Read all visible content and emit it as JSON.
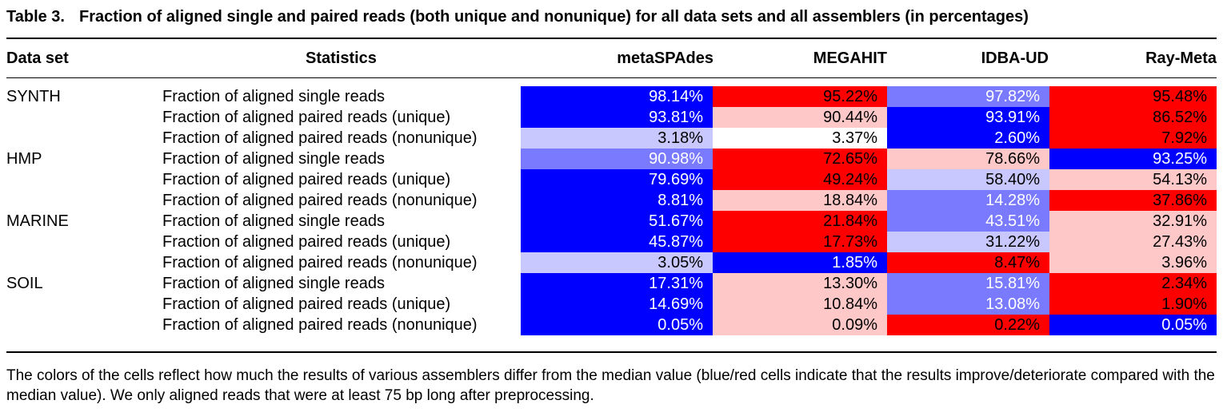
{
  "caption": {
    "label": "Table 3.",
    "title": "Fraction of aligned single and paired reads (both unique and nonunique) for all data sets and all assemblers (in percentages)"
  },
  "headers": {
    "dataset": "Data set",
    "statistics": "Statistics",
    "assemblers": [
      "metaSPAdes",
      "MEGAHIT",
      "IDBA-UD",
      "Ray-Meta"
    ]
  },
  "colors": {
    "blue": "#0000ff",
    "medium_blue": "#7a7aff",
    "light_blue": "#c8c8ff",
    "white": "#ffffff",
    "light_red": "#ffc8c8",
    "red": "#ff0000"
  },
  "rows": [
    {
      "dataset": "SYNTH",
      "stat": "Fraction of aligned single reads",
      "cells": [
        {
          "v": "98.14%",
          "c": "blue"
        },
        {
          "v": "95.22%",
          "c": "red"
        },
        {
          "v": "97.82%",
          "c": "medium_blue"
        },
        {
          "v": "95.48%",
          "c": "red"
        }
      ]
    },
    {
      "dataset": "",
      "stat": "Fraction of aligned paired reads (unique)",
      "cells": [
        {
          "v": "93.81%",
          "c": "blue"
        },
        {
          "v": "90.44%",
          "c": "light_red"
        },
        {
          "v": "93.91%",
          "c": "blue"
        },
        {
          "v": "86.52%",
          "c": "red"
        }
      ]
    },
    {
      "dataset": "",
      "stat": "Fraction of aligned paired reads (nonunique)",
      "cells": [
        {
          "v": "3.18%",
          "c": "light_blue"
        },
        {
          "v": "3.37%",
          "c": "white"
        },
        {
          "v": "2.60%",
          "c": "blue"
        },
        {
          "v": "7.92%",
          "c": "red"
        }
      ]
    },
    {
      "dataset": "HMP",
      "stat": "Fraction of aligned single reads",
      "cells": [
        {
          "v": "90.98%",
          "c": "medium_blue"
        },
        {
          "v": "72.65%",
          "c": "red"
        },
        {
          "v": "78.66%",
          "c": "light_red"
        },
        {
          "v": "93.25%",
          "c": "blue"
        }
      ]
    },
    {
      "dataset": "",
      "stat": "Fraction of aligned paired reads (unique)",
      "cells": [
        {
          "v": "79.69%",
          "c": "blue"
        },
        {
          "v": "49.24%",
          "c": "red"
        },
        {
          "v": "58.40%",
          "c": "light_blue"
        },
        {
          "v": "54.13%",
          "c": "light_red"
        }
      ]
    },
    {
      "dataset": "",
      "stat": "Fraction of aligned paired reads (nonunique)",
      "cells": [
        {
          "v": "8.81%",
          "c": "blue"
        },
        {
          "v": "18.84%",
          "c": "light_red"
        },
        {
          "v": "14.28%",
          "c": "medium_blue"
        },
        {
          "v": "37.86%",
          "c": "red"
        }
      ]
    },
    {
      "dataset": "MARINE",
      "stat": "Fraction of aligned single reads",
      "cells": [
        {
          "v": "51.67%",
          "c": "blue"
        },
        {
          "v": "21.84%",
          "c": "red"
        },
        {
          "v": "43.51%",
          "c": "medium_blue"
        },
        {
          "v": "32.91%",
          "c": "light_red"
        }
      ]
    },
    {
      "dataset": "",
      "stat": "Fraction of aligned paired reads (unique)",
      "cells": [
        {
          "v": "45.87%",
          "c": "blue"
        },
        {
          "v": "17.73%",
          "c": "red"
        },
        {
          "v": "31.22%",
          "c": "light_blue"
        },
        {
          "v": "27.43%",
          "c": "light_red"
        }
      ]
    },
    {
      "dataset": "",
      "stat": "Fraction of aligned paired reads (nonunique)",
      "cells": [
        {
          "v": "3.05%",
          "c": "light_blue"
        },
        {
          "v": "1.85%",
          "c": "blue"
        },
        {
          "v": "8.47%",
          "c": "red"
        },
        {
          "v": "3.96%",
          "c": "light_red"
        }
      ]
    },
    {
      "dataset": "SOIL",
      "stat": "Fraction of aligned single reads",
      "cells": [
        {
          "v": "17.31%",
          "c": "blue"
        },
        {
          "v": "13.30%",
          "c": "light_red"
        },
        {
          "v": "15.81%",
          "c": "medium_blue"
        },
        {
          "v": "2.34%",
          "c": "red"
        }
      ]
    },
    {
      "dataset": "",
      "stat": "Fraction of aligned paired reads (unique)",
      "cells": [
        {
          "v": "14.69%",
          "c": "blue"
        },
        {
          "v": "10.84%",
          "c": "light_red"
        },
        {
          "v": "13.08%",
          "c": "medium_blue"
        },
        {
          "v": "1.90%",
          "c": "red"
        }
      ]
    },
    {
      "dataset": "",
      "stat": "Fraction of aligned paired reads (nonunique)",
      "cells": [
        {
          "v": "0.05%",
          "c": "blue"
        },
        {
          "v": "0.09%",
          "c": "light_red"
        },
        {
          "v": "0.22%",
          "c": "red"
        },
        {
          "v": "0.05%",
          "c": "blue"
        }
      ]
    }
  ],
  "footnote": "The colors of the cells reflect how much the results of various assemblers differ from the median value (blue/red cells indicate that the results improve/deteriorate compared with the median value). We only aligned reads that were at least 75 bp long after preprocessing."
}
